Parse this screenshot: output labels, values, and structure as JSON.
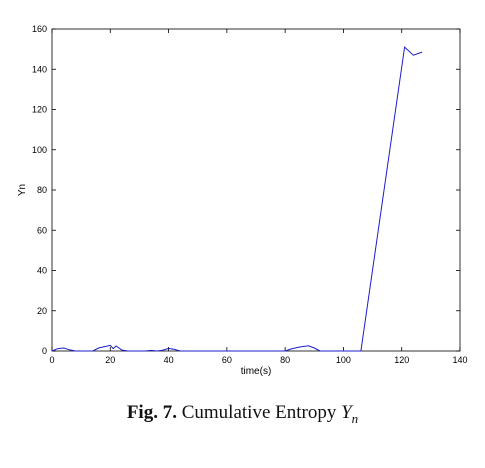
{
  "chart_data": {
    "type": "line",
    "xlabel": "time(s)",
    "ylabel": "Yn",
    "xlim": [
      0,
      140
    ],
    "ylim": [
      0,
      160
    ],
    "xticks": [
      0,
      20,
      40,
      60,
      80,
      100,
      120,
      140
    ],
    "yticks": [
      0,
      20,
      40,
      60,
      80,
      100,
      120,
      140,
      160
    ],
    "grid": false,
    "color": "#1c1cc8",
    "series": [
      {
        "values": [
          [
            0,
            0
          ],
          [
            2,
            1.2
          ],
          [
            4,
            1.5
          ],
          [
            6,
            0.6
          ],
          [
            8,
            0
          ],
          [
            14,
            0
          ],
          [
            16,
            1.5
          ],
          [
            18,
            2.2
          ],
          [
            20,
            2.8
          ],
          [
            21,
            1.2
          ],
          [
            22,
            2.5
          ],
          [
            24,
            0.5
          ],
          [
            26,
            0
          ],
          [
            32,
            0
          ],
          [
            34,
            0.3
          ],
          [
            36,
            0
          ],
          [
            38,
            0.4
          ],
          [
            40,
            1.3
          ],
          [
            42,
            0.8
          ],
          [
            44,
            0
          ],
          [
            80,
            0
          ],
          [
            82,
            1.0
          ],
          [
            85,
            2.0
          ],
          [
            88,
            2.6
          ],
          [
            90,
            1.5
          ],
          [
            92,
            0
          ],
          [
            106,
            0
          ],
          [
            121,
            151
          ],
          [
            124,
            147
          ],
          [
            127,
            148.5
          ]
        ]
      }
    ]
  },
  "caption": {
    "label": "Fig. 7.",
    "text": "Cumulative Entropy",
    "symbol": "Y",
    "subscript": "n"
  }
}
